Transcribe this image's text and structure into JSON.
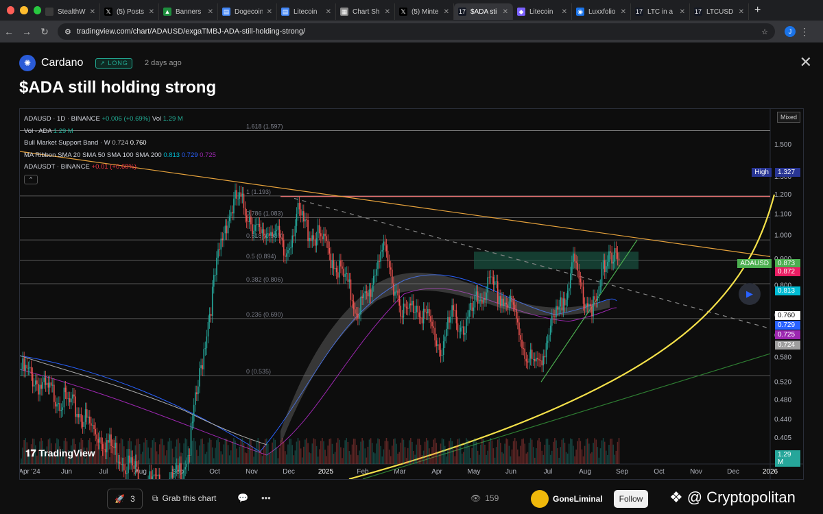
{
  "browser": {
    "tabs": [
      {
        "label": "StealthW",
        "favColor": "#3a3a3a",
        "glyph": ""
      },
      {
        "label": "(5) Posts",
        "favColor": "#000000",
        "glyph": "𝕏"
      },
      {
        "label": "Banners",
        "favColor": "#1e8e3e",
        "glyph": "▲"
      },
      {
        "label": "Dogecoin",
        "favColor": "#4285f4",
        "glyph": "▤"
      },
      {
        "label": "Litecoin",
        "favColor": "#4285f4",
        "glyph": "▤"
      },
      {
        "label": "Chart Sh",
        "favColor": "#888888",
        "glyph": "▦"
      },
      {
        "label": "(5) Minte",
        "favColor": "#000000",
        "glyph": "𝕏"
      },
      {
        "label": "$ADA sti",
        "favColor": "#131722",
        "glyph": "17",
        "active": true
      },
      {
        "label": "Litecoin",
        "favColor": "#7b61ff",
        "glyph": "◆"
      },
      {
        "label": "Luxxfolio",
        "favColor": "#1a73e8",
        "glyph": "◉"
      },
      {
        "label": "LTC in a",
        "favColor": "#131722",
        "glyph": "17"
      },
      {
        "label": "LTCUSD",
        "favColor": "#131722",
        "glyph": "17"
      }
    ],
    "new_tab": "+",
    "url": "tradingview.com/chart/ADAUSD/exgaTMBJ-ADA-still-holding-strong/",
    "profile_initial": "J"
  },
  "header": {
    "coin": "Cardano",
    "badge": "↗ LONG",
    "time": "2 days ago",
    "title": "$ADA still holding strong"
  },
  "legend": {
    "symbol": "ADAUSD · 1D · BINANCE",
    "change": "+0.006 (+0.69%)",
    "vol_label": "Vol",
    "vol_value": "1.29 M",
    "vol_ada_label": "Vol - ADA",
    "vol_ada_value": "1.29 M",
    "bmsb_label": "Bull Market Support Band · W",
    "bmsb_v1": "0.724",
    "bmsb_v2": "0.760",
    "ribbon_label": "MA Ribbon SMA 20 SMA 50 SMA 100 SMA 200",
    "ribbon_v1": "0.813",
    "ribbon_v2": "0.729",
    "ribbon_v3": "0.725",
    "adausdt_label": "ADAUSDT · BINANCE",
    "adausdt_change": "+0.01 (+0.68%)",
    "collapse": "^"
  },
  "chart_data": {
    "type": "candlestick",
    "symbol": "ADAUSD",
    "interval": "1D",
    "scale": "log",
    "scale_mode": "Mixed",
    "y_ticks": [
      1.5,
      1.3,
      1.2,
      1.1,
      1.0,
      0.9,
      0.8,
      0.7,
      0.64,
      0.58,
      0.52,
      0.48,
      0.44,
      0.405
    ],
    "y_tick_labels": [
      "1.500",
      "1.300",
      "1.200",
      "1.100",
      "1.000",
      "0.900",
      "0.800",
      "0.700",
      "0.640",
      "0.580",
      "0.520",
      "0.480",
      "0.440",
      "0.405"
    ],
    "x_tick_labels": [
      "Apr '24",
      "Jun",
      "Jul",
      "Aug",
      "Sep",
      "Oct",
      "Nov",
      "Dec",
      "2025",
      "Feb",
      "Mar",
      "Apr",
      "May",
      "Jun",
      "Jul",
      "Aug",
      "Sep",
      "Oct",
      "Nov",
      "Dec",
      "2026"
    ],
    "fib_levels": [
      {
        "label": "1.618 (1.597)",
        "value": 1.597
      },
      {
        "label": "1 (1.193)",
        "value": 1.193
      },
      {
        "label": "0.786 (1.083)",
        "value": 1.083
      },
      {
        "label": "0.618 (0.980)",
        "value": 0.98
      },
      {
        "label": "0.5 (0.894)",
        "value": 0.894
      },
      {
        "label": "0.382 (0.806)",
        "value": 0.806
      },
      {
        "label": "0.236 (0.690)",
        "value": 0.69
      },
      {
        "label": "0 (0.535)",
        "value": 0.535
      }
    ],
    "price_labels": [
      {
        "label": "High",
        "value": "1.327",
        "color": "#283593"
      },
      {
        "label": "ADAUSD",
        "value": "0.873",
        "color": "#4caf50"
      },
      {
        "value": "0.872",
        "color": "#e91e63"
      },
      {
        "value": "0.813",
        "color": "#00bcd4"
      },
      {
        "value": "0.760",
        "color": "#ffffff"
      },
      {
        "value": "0.729",
        "color": "#2962ff"
      },
      {
        "value": "0.725",
        "color": "#9c27b0"
      },
      {
        "value": "0.724",
        "color": "#9e9e9e"
      }
    ],
    "volume_label": "1.29 M",
    "price_path": [
      0.55,
      0.53,
      0.5,
      0.49,
      0.47,
      0.45,
      0.42,
      0.4,
      0.38,
      0.36,
      0.34,
      0.33,
      0.32,
      0.34,
      0.38,
      0.55,
      0.78,
      1.05,
      1.18,
      1.1,
      0.98,
      1.05,
      0.9,
      1.1,
      1.02,
      0.98,
      0.9,
      0.82,
      0.72,
      0.76,
      0.95,
      0.82,
      0.7,
      0.74,
      0.68,
      0.6,
      0.7,
      0.66,
      0.74,
      0.8,
      0.76,
      0.72,
      0.6,
      0.55,
      0.64,
      0.72,
      0.88,
      0.76,
      0.72,
      0.95,
      0.85
    ]
  },
  "brand": {
    "tv_logo": "𝟏𝟕 TradingView",
    "play": "▶"
  },
  "footer": {
    "boost_count": "3",
    "grab_label": "Grab this chart",
    "views": "159",
    "author": "GoneLiminal",
    "follow": "Follow",
    "watermark": "@ Cryptopolitan"
  }
}
